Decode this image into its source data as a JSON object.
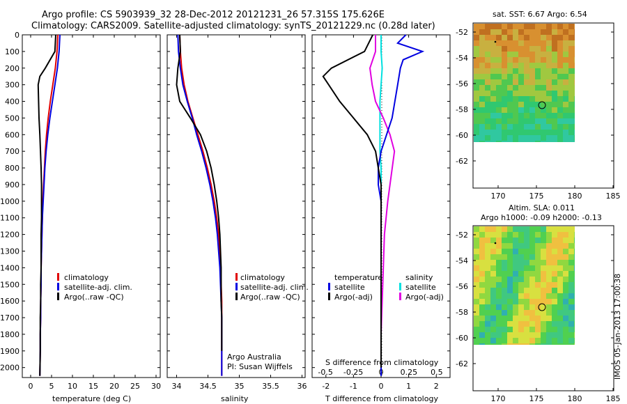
{
  "titles": {
    "line1": "Argo profile: CS 5903939_32 28-Dec-2012 20121231_26 57.315S 175.626E",
    "line2": "Climatology: CARS2009. Satellite-adjusted climatology: synTS_20121229.nc (0.28d later)"
  },
  "depth_ticks": [
    "0",
    "100",
    "200",
    "300",
    "400",
    "500",
    "600",
    "700",
    "800",
    "900",
    "1000",
    "1100",
    "1200",
    "1300",
    "1400",
    "1500",
    "1600",
    "1700",
    "1800",
    "1900",
    "2000"
  ],
  "colors": {
    "climatology": "#e00000",
    "satellite": "#0000e0",
    "argo": "#000000",
    "sat_salinity": "#00e0e0",
    "argo_salinity": "#e000e0"
  },
  "panels": {
    "temperature": {
      "xlabel": "temperature (deg C)",
      "xticks": [
        "0",
        "5",
        "10",
        "15",
        "20",
        "25",
        "30"
      ],
      "legend": [
        "climatology",
        "satellite-adj. clim.",
        "Argo(..raw -QC)"
      ]
    },
    "salinity": {
      "xlabel": "salinity",
      "xticks": [
        "34",
        "34.5",
        "35",
        "35.5",
        "36"
      ],
      "legend": [
        "climatology",
        "satellite-adj. clim.",
        "Argo(..raw -QC)"
      ],
      "note1": "Argo Australia",
      "note2": "PI: Susan Wijffels"
    },
    "difference": {
      "xlabel": "T difference from climatology",
      "xticks": [
        "-2",
        "-1",
        "0",
        "1",
        "2"
      ],
      "s_label": "S difference from climatology",
      "s_ticks": [
        "-0.5",
        "-0.25",
        "0",
        "0.25",
        "0.5"
      ],
      "legend_temp_title": "temperature",
      "legend_temp": [
        "satellite",
        "Argo(-adj)"
      ],
      "legend_sal_title": "salinity",
      "legend_sal": [
        "satellite",
        "Argo(-adj)"
      ]
    },
    "map_sst": {
      "title": "sat. SST: 6.67 Argo: 6.54",
      "yticks": [
        "-52",
        "-54",
        "-56",
        "-58",
        "-60",
        "-62"
      ],
      "xticks": [
        "170",
        "175",
        "180",
        "185"
      ]
    },
    "map_sla": {
      "title1": "Altim. SLA: 0.011",
      "title2": "Argo h1000: -0.09 h2000: -0.13",
      "yticks": [
        "-52",
        "-54",
        "-56",
        "-58",
        "-60",
        "-62"
      ],
      "xticks": [
        "170",
        "175",
        "180",
        "185"
      ]
    }
  },
  "footer": "IMOS 05-Jan-2013 17:00:38",
  "chart_data": [
    {
      "type": "line",
      "xlabel": "temperature (deg C)",
      "ylabel": "",
      "xlim": [
        -2,
        31
      ],
      "ylim": [
        2060,
        0
      ],
      "series": [
        {
          "name": "climatology",
          "x": [
            6.5,
            6.3,
            5.9,
            5.3,
            4.7,
            4.2,
            3.8,
            3.5,
            3.3,
            3.1,
            2.9,
            2.8,
            2.7,
            2.6,
            2.5,
            2.5,
            2.4,
            2.4,
            2.3,
            2.3,
            2.2
          ],
          "y": [
            0,
            100,
            200,
            300,
            400,
            500,
            600,
            700,
            800,
            900,
            1000,
            1100,
            1200,
            1300,
            1400,
            1500,
            1600,
            1700,
            1800,
            1900,
            2050
          ]
        },
        {
          "name": "satellite-adj. clim.",
          "x": [
            7.0,
            6.8,
            6.4,
            5.8,
            5.2,
            4.6,
            4.1,
            3.7,
            3.4,
            3.2,
            3.0,
            2.8,
            2.7,
            2.6,
            2.5,
            2.5,
            2.4,
            2.4,
            2.3,
            2.3,
            2.2
          ],
          "y": [
            0,
            100,
            200,
            300,
            400,
            500,
            600,
            700,
            800,
            900,
            1000,
            1100,
            1200,
            1300,
            1400,
            1500,
            1600,
            1700,
            1800,
            1900,
            2050
          ]
        },
        {
          "name": "Argo(..raw -QC)",
          "x": [
            6.0,
            5.8,
            3.5,
            2.2,
            1.8,
            1.9,
            2.0,
            2.2,
            2.5,
            2.6,
            2.6,
            2.6,
            2.5,
            2.5,
            2.5,
            2.4,
            2.4,
            2.3,
            2.3,
            2.3,
            2.2
          ],
          "y": [
            0,
            100,
            200,
            250,
            300,
            400,
            500,
            600,
            800,
            900,
            1000,
            1100,
            1200,
            1300,
            1400,
            1500,
            1600,
            1700,
            1800,
            1900,
            2050
          ]
        }
      ]
    },
    {
      "type": "line",
      "xlabel": "salinity",
      "ylabel": "",
      "xlim": [
        33.85,
        36.05
      ],
      "ylim": [
        2060,
        0
      ],
      "series": [
        {
          "name": "climatology",
          "x": [
            34.05,
            34.06,
            34.08,
            34.12,
            34.18,
            34.26,
            34.34,
            34.42,
            34.49,
            34.55,
            34.6,
            34.64,
            34.67,
            34.69,
            34.7,
            34.71,
            34.72,
            34.72,
            34.72,
            34.72,
            34.72
          ],
          "y": [
            0,
            100,
            200,
            300,
            400,
            500,
            600,
            700,
            800,
            900,
            1000,
            1100,
            1200,
            1300,
            1400,
            1500,
            1600,
            1700,
            1800,
            1900,
            2050
          ]
        },
        {
          "name": "satellite-adj. clim.",
          "x": [
            34.02,
            34.03,
            34.06,
            34.1,
            34.17,
            34.25,
            34.32,
            34.4,
            34.47,
            34.53,
            34.58,
            34.62,
            34.65,
            34.67,
            34.69,
            34.7,
            34.71,
            34.72,
            34.72,
            34.72,
            34.72
          ],
          "y": [
            0,
            100,
            200,
            300,
            400,
            500,
            600,
            700,
            800,
            900,
            1000,
            1100,
            1200,
            1300,
            1400,
            1500,
            1600,
            1700,
            1800,
            1900,
            2050
          ]
        },
        {
          "name": "Argo(..raw -QC)",
          "x": [
            34.05,
            34.06,
            34.02,
            34.0,
            34.05,
            34.22,
            34.38,
            34.48,
            34.55,
            34.6,
            34.64,
            34.67,
            34.69,
            34.7,
            34.71,
            34.71,
            34.71,
            34.72,
            34.72,
            34.72
          ],
          "y": [
            0,
            100,
            200,
            300,
            400,
            500,
            600,
            700,
            800,
            900,
            1000,
            1100,
            1200,
            1300,
            1400,
            1500,
            1600,
            1700,
            1800,
            1900
          ]
        }
      ]
    },
    {
      "type": "line",
      "xlabel": "T difference from climatology",
      "ylabel": "",
      "xlim": [
        -2.5,
        2.5
      ],
      "ylim": [
        2060,
        0
      ],
      "series": [
        {
          "name": "satellite",
          "x": [
            0.9,
            0.6,
            1.5,
            0.8,
            0.7,
            0.6,
            0.5,
            0.4,
            0.2,
            0.0,
            -0.1,
            -0.1,
            0.0,
            0.0,
            0.0,
            0.0,
            0.0,
            0.0,
            0.0,
            0.0
          ],
          "y": [
            0,
            50,
            100,
            150,
            200,
            300,
            400,
            500,
            600,
            700,
            800,
            900,
            1000,
            1200,
            1400,
            1600,
            1800,
            1900,
            2000,
            2050
          ]
        },
        {
          "name": "Argo(-adj)",
          "x": [
            -0.3,
            -0.6,
            -1.8,
            -2.1,
            -1.9,
            -1.5,
            -1.0,
            -0.5,
            -0.2,
            -0.1,
            0.0,
            0.0,
            0.0,
            0.0,
            0.0,
            0.0,
            0.0
          ],
          "y": [
            0,
            100,
            200,
            250,
            300,
            400,
            500,
            600,
            700,
            800,
            900,
            1000,
            1200,
            1400,
            1600,
            1800,
            2000
          ]
        }
      ]
    },
    {
      "type": "line",
      "xlabel": "S difference from climatology",
      "ylabel": "",
      "xlim": [
        -0.62,
        0.62
      ],
      "ylim": [
        2060,
        0
      ],
      "series": [
        {
          "name": "satellite",
          "x": [
            0.0,
            0.0,
            0.01,
            0.0,
            -0.01,
            -0.01,
            -0.01,
            -0.01,
            0.0,
            0.0,
            0.0,
            0.0,
            0.0,
            0.0,
            0.0
          ],
          "y": [
            0,
            100,
            200,
            300,
            400,
            500,
            600,
            700,
            800,
            1000,
            1200,
            1400,
            1600,
            1800,
            2000
          ]
        },
        {
          "name": "Argo(-adj)",
          "x": [
            -0.05,
            -0.05,
            -0.1,
            -0.08,
            -0.05,
            0.02,
            0.08,
            0.12,
            0.1,
            0.06,
            0.03,
            0.02,
            0.01,
            0.0,
            0.0
          ],
          "y": [
            0,
            100,
            200,
            300,
            400,
            500,
            600,
            700,
            800,
            1000,
            1200,
            1400,
            1600,
            1800,
            2000
          ]
        }
      ]
    }
  ]
}
